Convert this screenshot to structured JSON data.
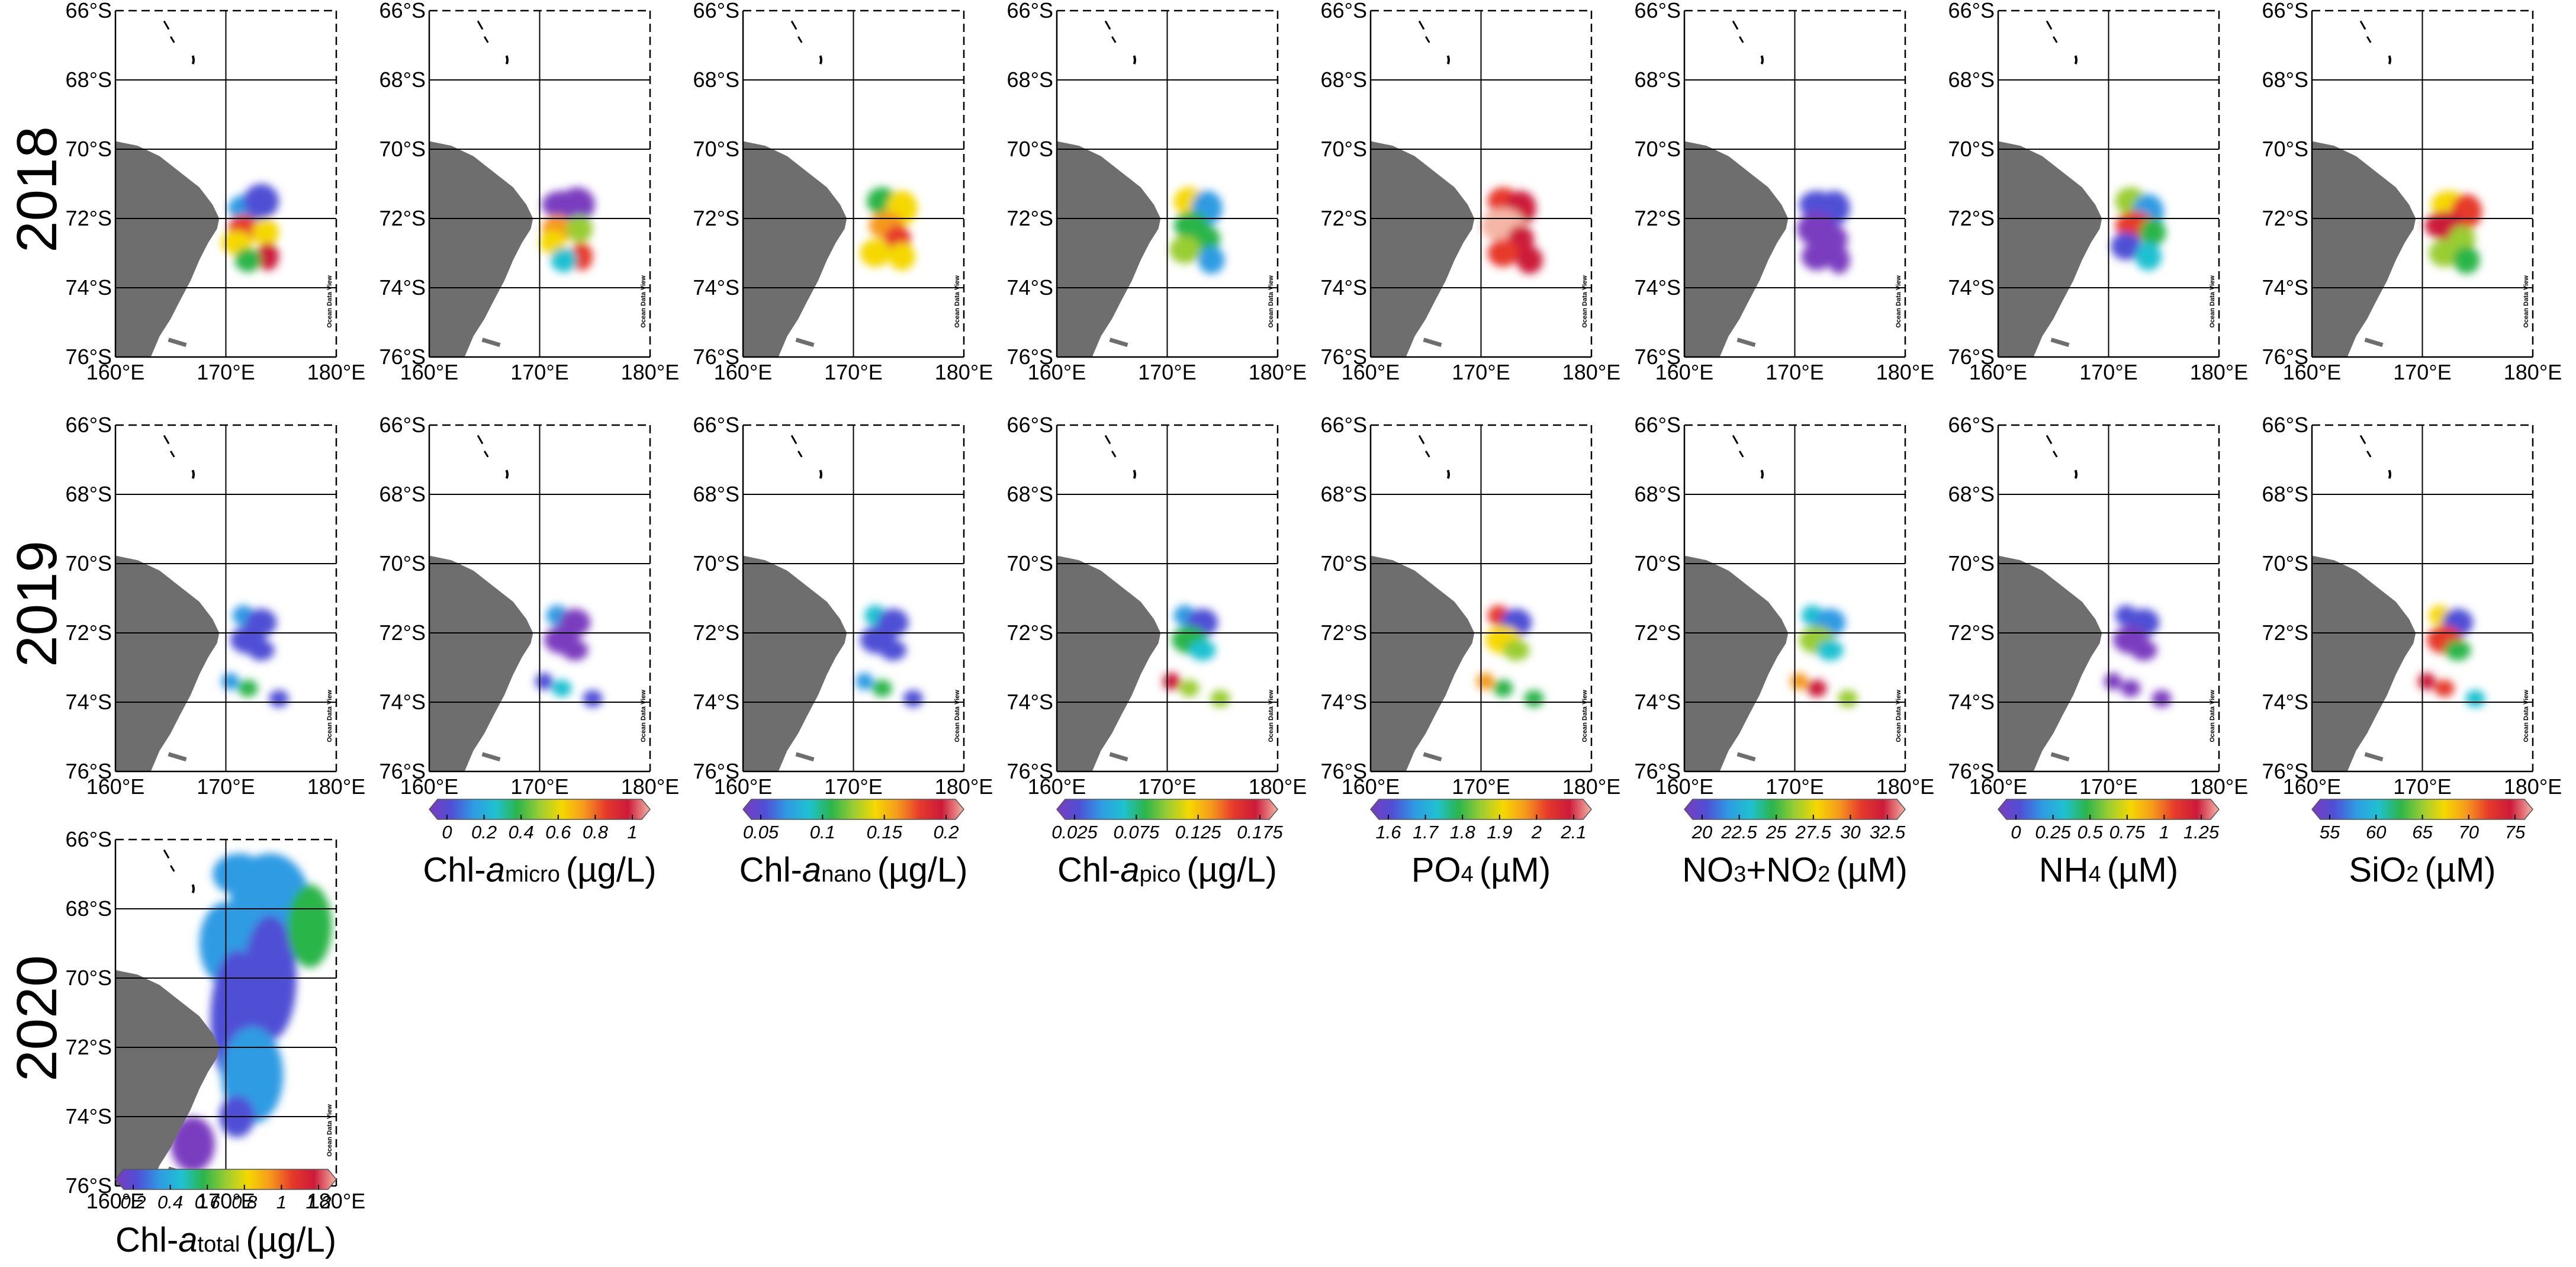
{
  "years": [
    "2018",
    "2019",
    "2020"
  ],
  "axes": {
    "lat_labels": [
      "66°S",
      "68°S",
      "70°S",
      "72°S",
      "74°S",
      "76°S"
    ],
    "lon_labels": [
      "160°E",
      "170°E",
      "180°E"
    ],
    "lat_range": [
      -76,
      -66
    ],
    "lon_range": [
      160,
      180
    ]
  },
  "watermark": "Ocean Data View",
  "palette": [
    "#7a3dbf",
    "#4f4fd6",
    "#2f9be3",
    "#1fc1d1",
    "#2bb54a",
    "#9acd32",
    "#f5d800",
    "#f59a1c",
    "#e63a2a",
    "#cc1a3a",
    "#f4b6a6"
  ],
  "variables": [
    {
      "key": "chl_total",
      "base": "Chl-",
      "base_italic": "a",
      "sub": "total",
      "unit": "(µg/L)",
      "ticks": [
        "0.2",
        "0.4",
        "0.6",
        "0.8",
        "1",
        "1.2"
      ]
    },
    {
      "key": "chl_micro",
      "base": "Chl-",
      "base_italic": "a",
      "sub": "micro",
      "unit": "(µg/L)",
      "ticks": [
        "0",
        "0.2",
        "0.4",
        "0.6",
        "0.8",
        "1"
      ]
    },
    {
      "key": "chl_nano",
      "base": "Chl-",
      "base_italic": "a",
      "sub": "nano",
      "unit": "(µg/L)",
      "ticks": [
        "0.05",
        "0.1",
        "0.15",
        "0.2"
      ]
    },
    {
      "key": "chl_pico",
      "base": "Chl-",
      "base_italic": "a",
      "sub": "pico",
      "unit": "(µg/L)",
      "ticks": [
        "0.025",
        "0.075",
        "0.125",
        "0.175"
      ]
    },
    {
      "key": "po4",
      "base": "PO",
      "base_italic": "",
      "sub": "4",
      "unit": "(µM)",
      "ticks": [
        "1.6",
        "1.7",
        "1.8",
        "1.9",
        "2",
        "2.1"
      ]
    },
    {
      "key": "no3no2",
      "base": "NO",
      "base_italic": "",
      "sub": "3",
      "base2": "+NO",
      "sub2": "2",
      "unit": "(µM)",
      "ticks": [
        "20",
        "22.5",
        "25",
        "27.5",
        "30",
        "32.5"
      ]
    },
    {
      "key": "nh4",
      "base": "NH",
      "base_italic": "",
      "sub": "4",
      "unit": "(µM)",
      "ticks": [
        "0",
        "0.25",
        "0.5",
        "0.75",
        "1",
        "1.25"
      ]
    },
    {
      "key": "sio2",
      "base": "SiO",
      "base_italic": "",
      "sub": "2",
      "unit": "(µM)",
      "ticks": [
        "55",
        "60",
        "65",
        "70",
        "75"
      ]
    }
  ]
}
